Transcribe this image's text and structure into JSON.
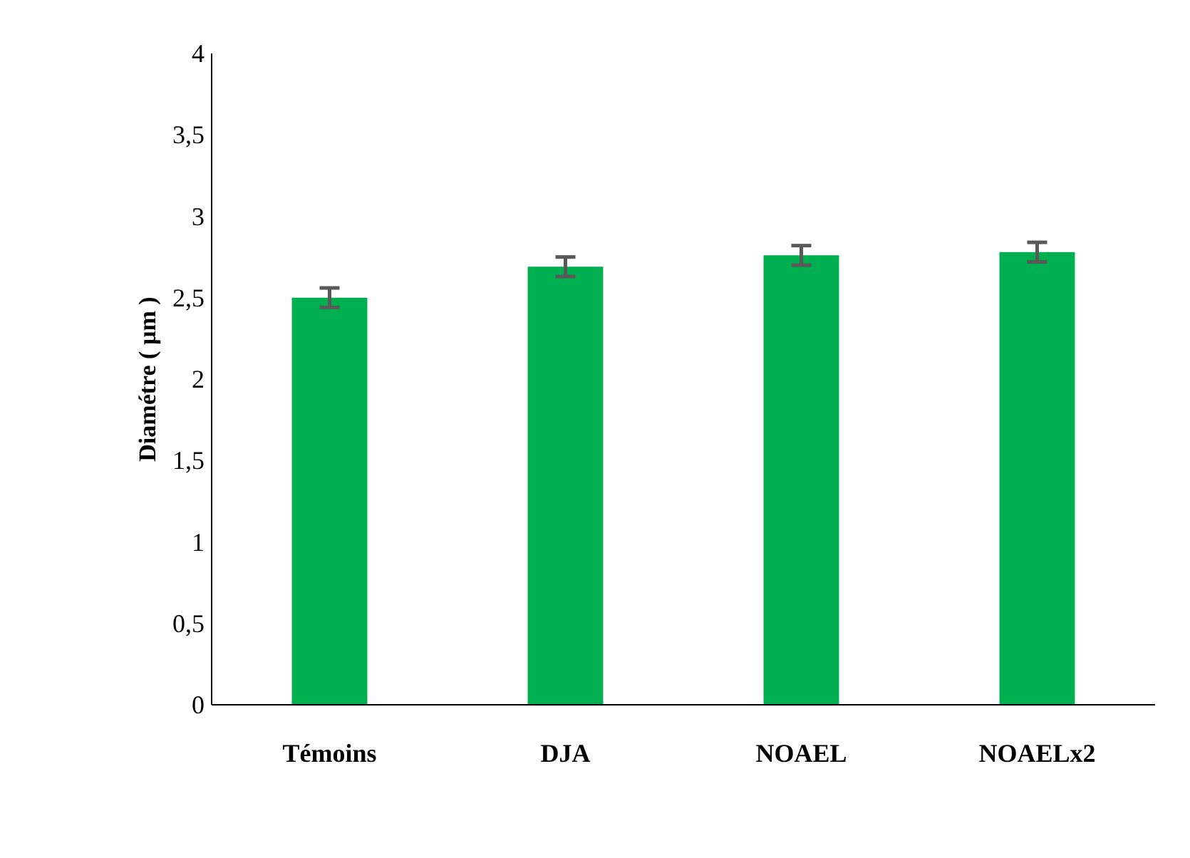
{
  "chart_data": {
    "type": "bar",
    "ylabel": "Diamétre ( µm )",
    "categories": [
      "Témoins",
      "DJA",
      "NOAEL",
      "NOAELx2"
    ],
    "values": [
      2.5,
      2.69,
      2.76,
      2.78
    ],
    "errors": [
      0.06,
      0.06,
      0.06,
      0.06
    ],
    "color": "#00b050",
    "ylim": [
      0,
      4
    ],
    "yticks": [
      0,
      {
        "value": 0.5,
        "label": "0,5"
      },
      1,
      {
        "value": 1.5,
        "label": "1,5"
      },
      2,
      {
        "value": 2.5,
        "label": "2,5"
      },
      3,
      {
        "value": 3.5,
        "label": "3,5"
      },
      4
    ],
    "grid": false
  }
}
